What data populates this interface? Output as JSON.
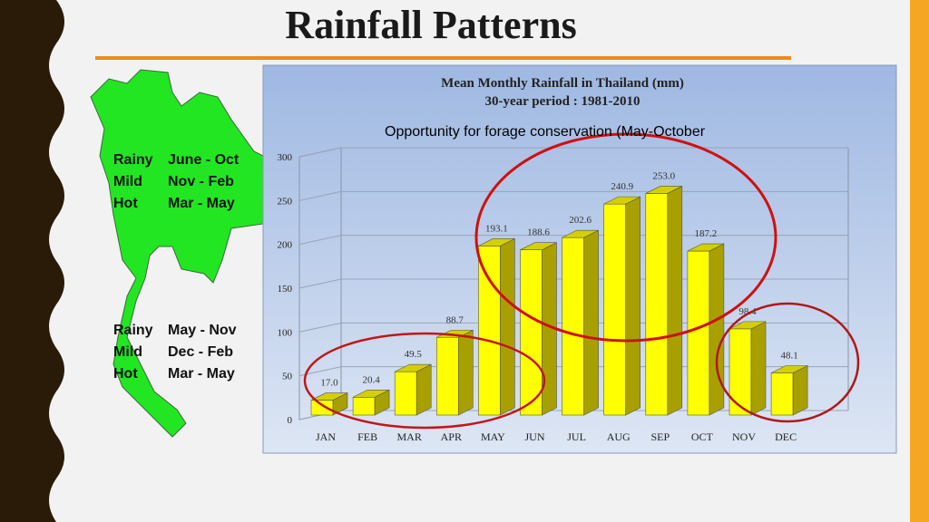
{
  "slide": {
    "title": "Rainfall Patterns",
    "note": "Opportunity for forage conservation (May-October",
    "regions": [
      {
        "rows": [
          [
            "Rainy",
            "June - Oct"
          ],
          [
            "Mild",
            "Nov - Feb"
          ],
          [
            "Hot",
            "Mar - May"
          ]
        ]
      },
      {
        "rows": [
          [
            "Rainy",
            "May - Nov"
          ],
          [
            "Mild",
            "Dec - Feb"
          ],
          [
            "Hot",
            "Mar - May"
          ]
        ]
      }
    ]
  },
  "chart_data": {
    "type": "bar",
    "title": "Mean Monthly Rainfall in Thailand (mm)",
    "subtitle": "30-year period : 1981-2010",
    "categories": [
      "JAN",
      "FEB",
      "MAR",
      "APR",
      "MAY",
      "JUN",
      "JUL",
      "AUG",
      "SEP",
      "OCT",
      "NOV",
      "DEC"
    ],
    "values": [
      17.0,
      20.4,
      49.5,
      88.7,
      193.1,
      188.6,
      202.6,
      240.9,
      253.0,
      187.2,
      98.4,
      48.1
    ],
    "labels": [
      "17.0",
      "20.4",
      "49.5",
      "88.7",
      "193.1",
      "188.6",
      "202.6",
      "240.9",
      "253.0",
      "187.2",
      "98.4",
      "48.1"
    ],
    "ylim": [
      0,
      300
    ],
    "yticks": [
      0,
      50,
      100,
      150,
      200,
      250,
      300
    ],
    "grid": true,
    "colors": {
      "bar_front": "#ffff00",
      "bar_side": "#a8a000",
      "bar_top": "#d4d000",
      "highlight_circle": "#d01010"
    }
  }
}
